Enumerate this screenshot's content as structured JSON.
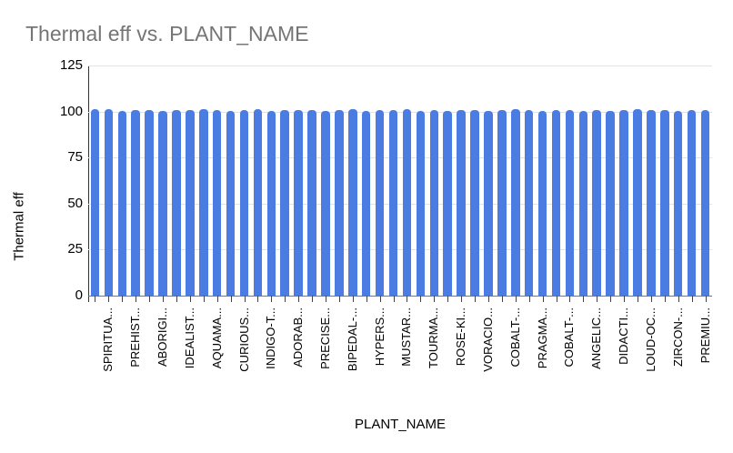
{
  "chart_data": {
    "type": "bar",
    "title": "Thermal eff vs. PLANT_NAME",
    "xlabel": "PLANT_NAME",
    "ylabel": "Thermal eff",
    "ylim": [
      0,
      125
    ],
    "yticks": [
      0,
      25,
      50,
      75,
      100,
      125
    ],
    "grid": true,
    "legend": "none",
    "bar_color": "#4a7ce2",
    "title_color": "#757575",
    "x_label_step": 2,
    "x_label_start_index": 1,
    "visible_x_labels": [
      "SPIRITUA...",
      "PREHIST...",
      "ABORIGI...",
      "IDEALIST...",
      "AQUAMA...",
      "CURIOUS...",
      "INDIGO-T...",
      "ADORAB...",
      "PRECISE...",
      "BIPEDAL-...",
      "HYPERS...",
      "MUSTAR...",
      "TOURMA...",
      "ROSE-KI...",
      "VORACIO...",
      "COBALT-...",
      "PRAGMA...",
      "COBALT-...",
      "ANGELIC...",
      "DIDACTI...",
      "LOUD-OC...",
      "ZIRCON-...",
      "PREMIU..."
    ],
    "values": [
      101.2,
      101.1,
      100.4,
      100.9,
      100.7,
      100.3,
      101.0,
      100.9,
      101.2,
      100.8,
      100.3,
      100.6,
      101.1,
      100.5,
      100.9,
      100.7,
      101.0,
      100.4,
      100.8,
      101.1,
      100.3,
      100.6,
      100.9,
      101.2,
      100.5,
      100.8,
      100.4,
      101.0,
      100.7,
      100.3,
      100.9,
      101.1,
      100.6,
      100.4,
      100.8,
      101.0,
      100.5,
      100.9,
      100.3,
      100.7,
      101.1,
      100.6,
      100.9,
      100.4,
      100.8,
      101.0
    ]
  }
}
